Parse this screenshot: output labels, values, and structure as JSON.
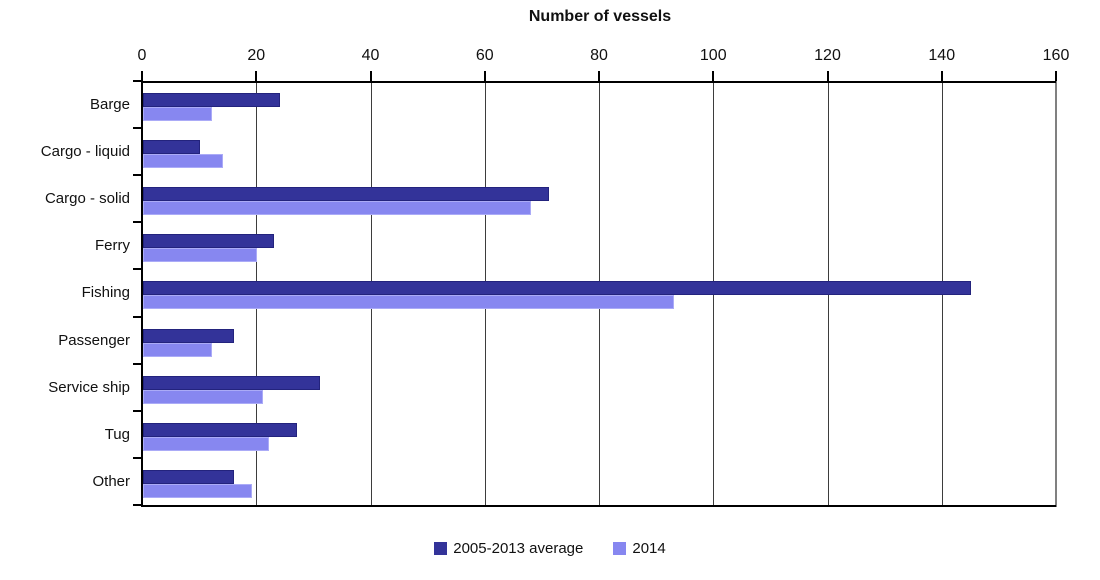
{
  "chart_data": {
    "type": "bar",
    "orientation": "horizontal",
    "title": "Number of vessels",
    "categories": [
      "Barge",
      "Cargo - liquid",
      "Cargo - solid",
      "Ferry",
      "Fishing",
      "Passenger",
      "Service ship",
      "Tug",
      "Other"
    ],
    "series": [
      {
        "name": "2005-2013 average",
        "color": "#333399",
        "border_color": "#23237D",
        "values": [
          24,
          10,
          71,
          23,
          145,
          16,
          31,
          27,
          16
        ]
      },
      {
        "name": "2014",
        "color": "#8787F0",
        "border_color": "#ABABF7",
        "values": [
          12,
          14,
          68,
          20,
          93,
          12,
          21,
          22,
          19
        ]
      }
    ],
    "x_axis": {
      "min": 0,
      "max": 160,
      "step": 20,
      "position": "top",
      "tick_labels": [
        "0",
        "20",
        "40",
        "60",
        "80",
        "100",
        "120",
        "140",
        "160"
      ]
    },
    "grid": true,
    "legend_position": "bottom",
    "colors": {
      "axis": "#000000",
      "grid": "#3D3D3D",
      "plot_right_border": "#808080",
      "text": "#111111"
    }
  }
}
